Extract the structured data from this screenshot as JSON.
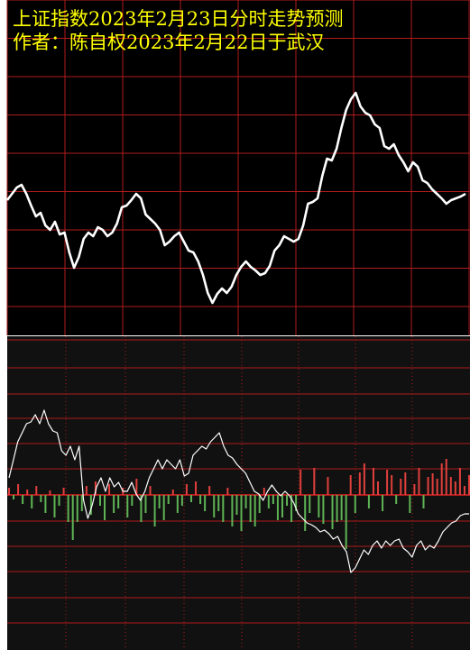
{
  "chart_data": [
    {
      "type": "line",
      "title": "上证指数2023年2月23日分时走势预测",
      "subtitle": "作者：陈自权2023年2月22日于武汉",
      "values": [
        150,
        157,
        164,
        167,
        157,
        144,
        132,
        136,
        122,
        117,
        126,
        112,
        114,
        92,
        75,
        87,
        107,
        114,
        110,
        120,
        117,
        110,
        114,
        124,
        142,
        144,
        150,
        157,
        152,
        134,
        129,
        124,
        117,
        100,
        104,
        110,
        114,
        104,
        94,
        92,
        82,
        67,
        47,
        36,
        46,
        52,
        47,
        54,
        67,
        76,
        82,
        76,
        72,
        67,
        69,
        77,
        94,
        100,
        110,
        107,
        104,
        107,
        122,
        146,
        148,
        152,
        177,
        196,
        194,
        207,
        230,
        250,
        262,
        269,
        254,
        247,
        244,
        234,
        230,
        210,
        207,
        212,
        200,
        192,
        182,
        192,
        187,
        172,
        169,
        162,
        157,
        152,
        146,
        150,
        152,
        154,
        157
      ],
      "color": "#ffffff",
      "ylim": [
        0,
        372
      ],
      "grid": true
    },
    {
      "type": "line-bar",
      "values": [
        19,
        39,
        59,
        69,
        79,
        81,
        89,
        79,
        94,
        79,
        71,
        69,
        49,
        44,
        54,
        39,
        54,
        -6,
        -26,
        -11,
        9,
        19,
        4,
        19,
        9,
        14,
        4,
        4,
        14,
        1,
        -6,
        4,
        19,
        29,
        39,
        29,
        39,
        34,
        29,
        39,
        21,
        24,
        44,
        49,
        54,
        51,
        59,
        64,
        69,
        54,
        44,
        41,
        34,
        29,
        24,
        14,
        4,
        1,
        -6,
        4,
        11,
        4,
        -1,
        4,
        -1,
        -9,
        -21,
        -26,
        -31,
        -33,
        -36,
        -41,
        -39,
        -43,
        -49,
        -46,
        -56,
        -63,
        -86,
        -81,
        -71,
        -61,
        -66,
        -56,
        -51,
        -59,
        -51,
        -56,
        -51,
        -49,
        -59,
        -63,
        -69,
        -56,
        -51,
        -61,
        -56,
        -59,
        -51,
        -41,
        -36,
        -31,
        -29,
        -23,
        -21,
        -21
      ],
      "color": "#ffffff",
      "bar_values": [
        8,
        -5,
        12,
        -10,
        6,
        -15,
        10,
        -8,
        -20,
        5,
        -25,
        -12,
        8,
        -30,
        -50,
        -30,
        -18,
        10,
        -22,
        15,
        -12,
        -28,
        12,
        -20,
        -15,
        8,
        -25,
        -12,
        18,
        -30,
        -20,
        10,
        -35,
        -15,
        -28,
        -10,
        6,
        -20,
        -12,
        12,
        -8,
        15,
        -10,
        -18,
        10,
        -25,
        -18,
        -30,
        8,
        -35,
        -22,
        -40,
        -15,
        -30,
        -35,
        -20,
        8,
        -15,
        -10,
        -28,
        -25,
        -12,
        -30,
        -18,
        28,
        -40,
        -20,
        30,
        -25,
        -32,
        20,
        -38,
        -30,
        -28,
        -60,
        22,
        -20,
        25,
        35,
        -15,
        30,
        15,
        -18,
        28,
        22,
        -10,
        18,
        25,
        -20,
        12,
        30,
        -15,
        20,
        24,
        18,
        35,
        40,
        20,
        15,
        30,
        10,
        22
      ],
      "bar_colors": [
        "#e0403c",
        "#5fb455"
      ],
      "ylim": [
        -172,
        176
      ],
      "grid": true
    }
  ]
}
